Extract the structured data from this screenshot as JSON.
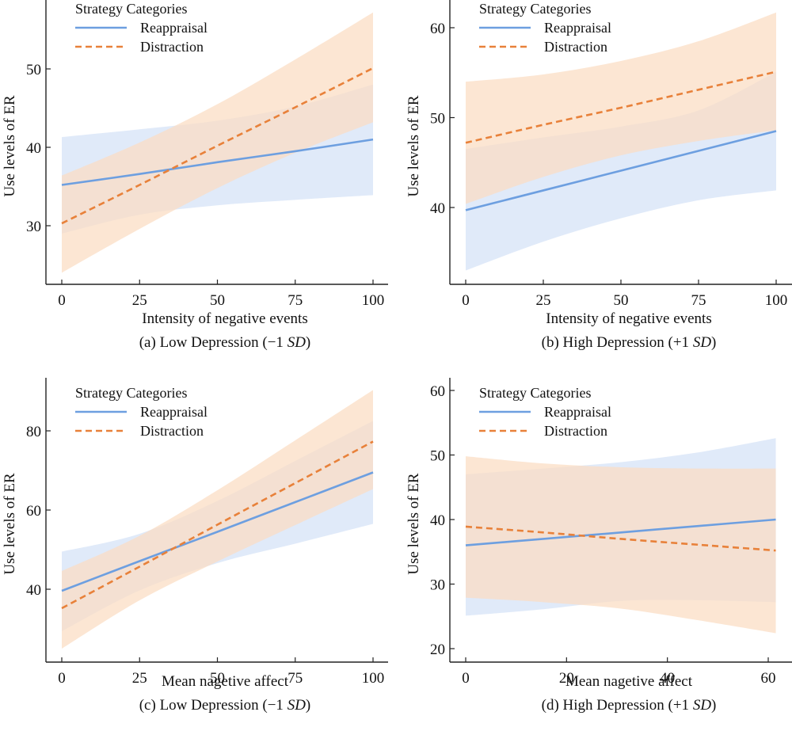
{
  "colors": {
    "reappraisal": "#6d9fe0",
    "reappraisal_band": "#dbe6f8",
    "distraction": "#e8813a",
    "distraction_band": "#fbdcc2",
    "overlap_note": "bands drawn semi-transparent"
  },
  "legend": {
    "title": "Strategy Categories",
    "items": [
      {
        "label": "Reappraisal",
        "style": "solid"
      },
      {
        "label": "Distraction",
        "style": "dashed"
      }
    ]
  },
  "chart_data": [
    {
      "id": "a",
      "type": "line",
      "caption_prefix": "(a) Low Depression (−1 ",
      "caption_italic": "SD",
      "caption_suffix": ")",
      "xlabel": "Intensity of negative events",
      "ylabel": "Use levels of ER",
      "xlim": [
        -5,
        105
      ],
      "ylim": [
        22,
        59
      ],
      "xticks": [
        0,
        25,
        50,
        75,
        100
      ],
      "yticks": [
        30,
        40,
        50
      ],
      "legend_position": "top-left",
      "grid": false,
      "x": [
        0,
        25,
        50,
        75,
        100
      ],
      "series": [
        {
          "name": "Reappraisal",
          "values": [
            35.2,
            36.6,
            38.1,
            39.5,
            41.0
          ],
          "ci_upper": [
            41.3,
            42.3,
            43.4,
            45.2,
            48.0
          ],
          "ci_lower": [
            29.0,
            31.4,
            32.6,
            33.3,
            33.9
          ]
        },
        {
          "name": "Distraction",
          "values": [
            30.3,
            35.2,
            40.2,
            45.1,
            50.1
          ],
          "ci_upper": [
            36.4,
            40.6,
            45.5,
            51.2,
            57.2
          ],
          "ci_lower": [
            24.0,
            29.6,
            34.8,
            39.3,
            43.2
          ]
        }
      ]
    },
    {
      "id": "b",
      "type": "line",
      "caption_prefix": "(b) High Depression (+1 ",
      "caption_italic": "SD",
      "caption_suffix": ")",
      "xlabel": "Intensity of negative events",
      "ylabel": "Use levels of ER",
      "xlim": [
        -5,
        105
      ],
      "ylim": [
        32,
        63
      ],
      "xticks": [
        0,
        25,
        50,
        75,
        100
      ],
      "yticks": [
        40,
        50,
        60
      ],
      "legend_position": "top-left",
      "grid": false,
      "x": [
        0,
        25,
        50,
        75,
        100
      ],
      "series": [
        {
          "name": "Reappraisal",
          "values": [
            39.7,
            41.9,
            44.1,
            46.3,
            48.5
          ],
          "ci_upper": [
            46.5,
            47.8,
            49.0,
            50.8,
            55.1
          ],
          "ci_lower": [
            33.0,
            36.2,
            38.8,
            40.8,
            41.9
          ]
        },
        {
          "name": "Distraction",
          "values": [
            47.2,
            49.2,
            51.1,
            53.1,
            55.1
          ],
          "ci_upper": [
            54.0,
            54.8,
            56.3,
            58.5,
            61.7
          ],
          "ci_lower": [
            40.4,
            43.4,
            45.8,
            47.4,
            48.6
          ]
        }
      ]
    },
    {
      "id": "c",
      "type": "line",
      "caption_prefix": "(c) Low Depression (−1 ",
      "caption_italic": "SD",
      "caption_suffix": ")",
      "xlabel": "Mean nagetive affect",
      "ylabel": "Use levels of ER",
      "xlim": [
        -5,
        105
      ],
      "ylim": [
        21,
        93
      ],
      "xticks": [
        0,
        25,
        50,
        75,
        100
      ],
      "yticks": [
        40,
        60,
        80
      ],
      "legend_position": "top-left",
      "grid": false,
      "x": [
        0,
        25,
        50,
        75,
        100
      ],
      "series": [
        {
          "name": "Reappraisal",
          "values": [
            39.6,
            47.1,
            54.5,
            62.0,
            69.5
          ],
          "ci_upper": [
            49.5,
            54.0,
            62.3,
            72.4,
            82.5
          ],
          "ci_lower": [
            29.4,
            39.7,
            46.6,
            51.5,
            56.5
          ]
        },
        {
          "name": "Distraction",
          "values": [
            35.2,
            45.7,
            56.3,
            66.8,
            77.3
          ],
          "ci_upper": [
            44.6,
            53.5,
            65.0,
            77.6,
            90.3
          ],
          "ci_lower": [
            25.0,
            37.2,
            47.0,
            56.2,
            65.3
          ]
        }
      ]
    },
    {
      "id": "d",
      "type": "line",
      "caption_prefix": "(d) High Depression (+1 ",
      "caption_italic": "SD",
      "caption_suffix": ")",
      "xlabel": "Mean nagetive affect",
      "ylabel": "Use levels of ER",
      "xlim": [
        -3.1,
        64.6
      ],
      "ylim": [
        18,
        62
      ],
      "xticks": [
        0,
        20,
        40,
        60
      ],
      "yticks": [
        20,
        30,
        40,
        50,
        60
      ],
      "legend_position": "top-left",
      "grid": false,
      "x": [
        0,
        15.4,
        30.8,
        46.1,
        61.5
      ],
      "series": [
        {
          "name": "Reappraisal",
          "values": [
            36.0,
            37.0,
            38.0,
            39.0,
            40.0
          ],
          "ci_upper": [
            47.0,
            47.9,
            48.9,
            50.4,
            52.6
          ],
          "ci_lower": [
            25.1,
            26.1,
            27.4,
            27.5,
            27.2
          ]
        },
        {
          "name": "Distraction",
          "values": [
            38.9,
            38.0,
            37.0,
            36.1,
            35.2
          ],
          "ci_upper": [
            49.8,
            48.7,
            48.1,
            47.9,
            47.9
          ],
          "ci_lower": [
            27.9,
            27.2,
            26.2,
            24.4,
            22.4
          ]
        }
      ]
    }
  ]
}
